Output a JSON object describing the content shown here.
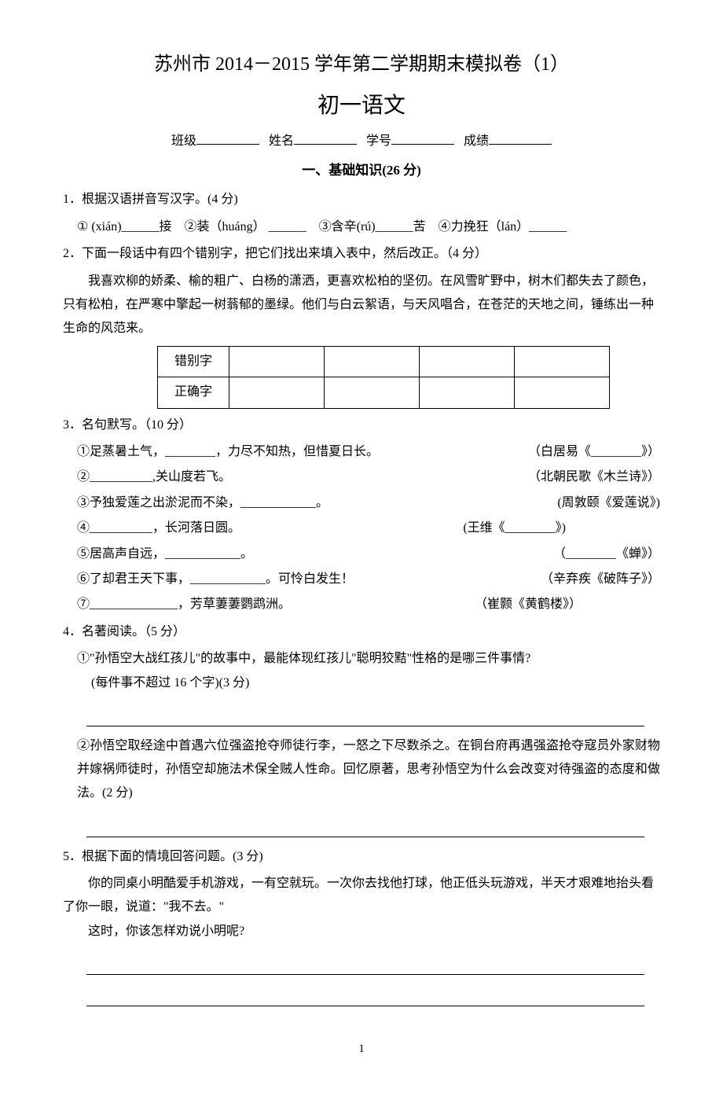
{
  "title_main": "苏州市 2014－2015 学年第二学期期末模拟卷（1）",
  "title_sub": "初一语文",
  "info": {
    "class": "班级",
    "name": "姓名",
    "sid": "学号",
    "score": "成绩"
  },
  "section1": "一、基础知识(26 分)",
  "q1": {
    "stem": "1．根据汉语拼音写汉字。(4 分)",
    "opts": "① (xián)______接　②装（huáng） ______　③含辛(rú)______苦　④力挽狂（lán）______"
  },
  "q2": {
    "stem": "2．下面一段话中有四个错别字，把它们找出来填入表中，然后改正。（4 分）",
    "p1": "我喜欢柳的娇柔、榆的粗广、白杨的潇洒，更喜欢松柏的坚仞。在风雪旷野中，树木们都失去了颜色，只有松柏，在严寒中擎起一树蓊郁的墨绿。他们与白云絮语，与天风唱合，在苍茫的天地之间，锤练出一种生命的风范来。",
    "row1": "错别字",
    "row2": "正确字"
  },
  "q3": {
    "stem": "3．名句默写。（10 分）",
    "items": [
      {
        "l": "①足蒸暑土气，________，力尽不知热，但惜夏日长。",
        "r": "（白居易《________》）"
      },
      {
        "l": "②__________,关山度若飞。",
        "r": "（北朝民歌《木兰诗》）"
      },
      {
        "l": "③予独爱莲之出淤泥而不染，____________。",
        "r": "(周敦颐《爱莲说》)"
      },
      {
        "l": "④__________，长河落日圆。",
        "r": "(王维《________》)"
      },
      {
        "l": "⑤居高声自远，____________。",
        "r": "（________《蝉》）"
      },
      {
        "l": "⑥了却君王天下事，____________。可怜白发生！",
        "r": "（辛弃疾《破阵子》）"
      },
      {
        "l": "⑦______________，芳草萋萋鹦鹉洲。",
        "r": "（崔颢《黄鹤楼》）"
      }
    ]
  },
  "q4": {
    "stem": "4．名著阅读。（5 分）",
    "s1a": "①\"孙悟空大战红孩儿\"的故事中，最能体现红孩儿\"聪明狡黠\"性格的是哪三件事情?",
    "s1b": "(每件事不超过 16 个字)(3 分)",
    "s2": "②孙悟空取经途中首遇六位强盗抢夺师徒行李，一怒之下尽数杀之。在铜台府再遇强盗抢夺寇员外家财物并嫁祸师徒时，孙悟空却施法术保全贼人性命。回忆原著，思考孙悟空为什么会改变对待强盗的态度和做法。(2 分)"
  },
  "q5": {
    "stem": "5．根据下面的情境回答问题。(3 分)",
    "p1": "你的同桌小明酷爱手机游戏，一有空就玩。一次你去找他打球，他正低头玩游戏，半天才艰难地抬头看了你一眼，说道：\"我不去。\"",
    "p2": "这时，你该怎样劝说小明呢?"
  },
  "page": "1"
}
